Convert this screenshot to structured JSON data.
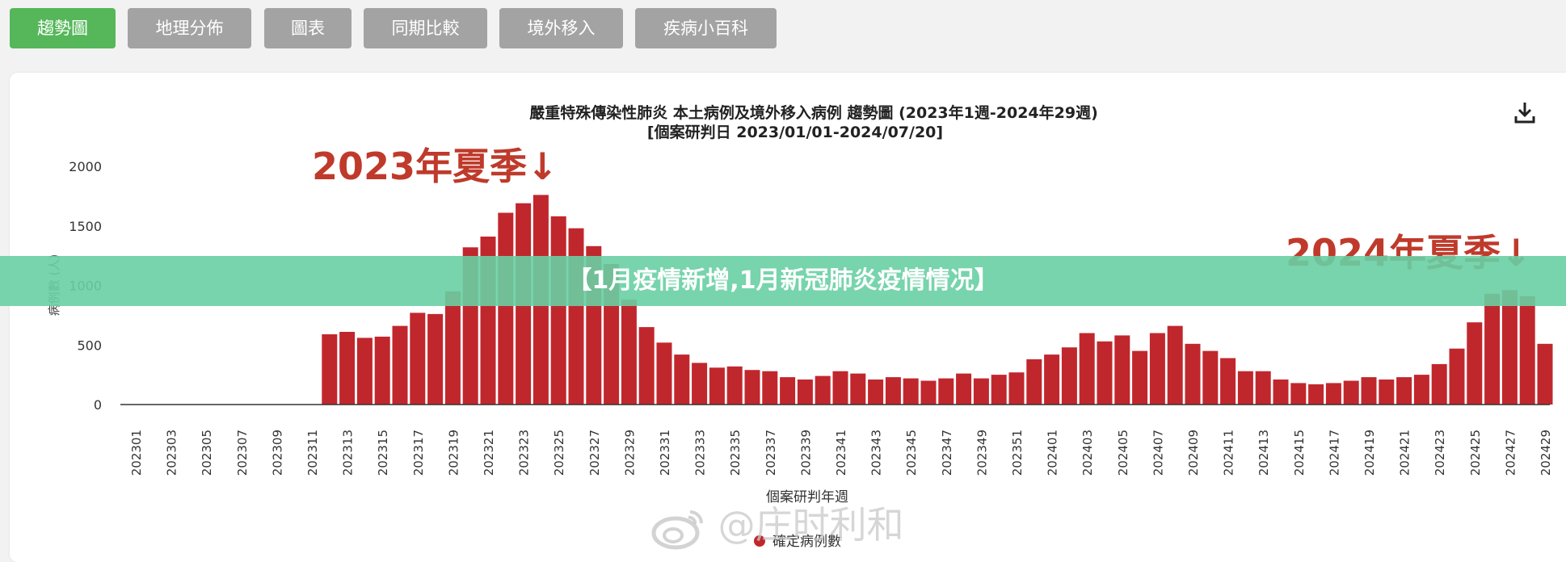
{
  "tabs": [
    {
      "label": "趨勢圖",
      "active": true
    },
    {
      "label": "地理分佈",
      "active": false
    },
    {
      "label": "圖表",
      "active": false
    },
    {
      "label": "同期比較",
      "active": false
    },
    {
      "label": "境外移入",
      "active": false
    },
    {
      "label": "疾病小百科",
      "active": false
    }
  ],
  "banner": {
    "text": "【1月疫情新增,1月新冠肺炎疫情情况】"
  },
  "watermark": {
    "text": "@庄时利和"
  },
  "download": {
    "icon": "download-icon"
  },
  "colors": {
    "bar": "#c0272d",
    "active_tab": "#55b75a",
    "tab": "#a3a3a3",
    "banner": "#68cfa3",
    "annotation": "#bf3a2b"
  },
  "chart_data": {
    "type": "bar",
    "title": "嚴重特殊傳染性肺炎 本土病例及境外移入病例 趨勢圖 (2023年1週-2024年29週)",
    "subtitle": "[個案研判日 2023/01/01-2024/07/20]",
    "xlabel": "個案研判年週",
    "ylabel": "病例數 (人)",
    "ylim": [
      0,
      2000
    ],
    "yticks": [
      0,
      500,
      1000,
      1500,
      2000
    ],
    "xtick_labels": [
      "202301",
      "202303",
      "202305",
      "202307",
      "202309",
      "202311",
      "202313",
      "202315",
      "202317",
      "202319",
      "202321",
      "202323",
      "202325",
      "202327",
      "202329",
      "202331",
      "202333",
      "202335",
      "202337",
      "202339",
      "202341",
      "202343",
      "202345",
      "202347",
      "202349",
      "202351",
      "202401",
      "202403",
      "202405",
      "202407",
      "202409",
      "202411",
      "202413",
      "202415",
      "202417",
      "202419",
      "202421",
      "202423",
      "202425",
      "202427",
      "202429"
    ],
    "categories": [
      "202301",
      "202302",
      "202303",
      "202304",
      "202305",
      "202306",
      "202307",
      "202308",
      "202309",
      "202310",
      "202311",
      "202312",
      "202313",
      "202314",
      "202315",
      "202316",
      "202317",
      "202318",
      "202319",
      "202320",
      "202321",
      "202322",
      "202323",
      "202324",
      "202325",
      "202326",
      "202327",
      "202328",
      "202329",
      "202330",
      "202331",
      "202332",
      "202333",
      "202334",
      "202335",
      "202336",
      "202337",
      "202338",
      "202339",
      "202340",
      "202341",
      "202342",
      "202343",
      "202344",
      "202345",
      "202346",
      "202347",
      "202348",
      "202349",
      "202350",
      "202351",
      "202352",
      "202401",
      "202402",
      "202403",
      "202404",
      "202405",
      "202406",
      "202407",
      "202408",
      "202409",
      "202410",
      "202411",
      "202412",
      "202413",
      "202414",
      "202415",
      "202416",
      "202417",
      "202418",
      "202419",
      "202420",
      "202421",
      "202422",
      "202423",
      "202424",
      "202425",
      "202426",
      "202427",
      "202428",
      "202429"
    ],
    "series": [
      {
        "name": "確定病例數",
        "values": [
          0,
          0,
          0,
          0,
          0,
          0,
          0,
          0,
          0,
          0,
          0,
          590,
          610,
          560,
          570,
          660,
          770,
          760,
          950,
          1320,
          1410,
          1610,
          1690,
          1760,
          1580,
          1480,
          1330,
          1180,
          880,
          650,
          520,
          420,
          350,
          310,
          320,
          290,
          280,
          230,
          210,
          240,
          280,
          260,
          210,
          230,
          220,
          200,
          220,
          260,
          220,
          250,
          270,
          380,
          420,
          480,
          600,
          530,
          580,
          450,
          600,
          660,
          510,
          450,
          390,
          280,
          280,
          210,
          180,
          170,
          180,
          200,
          230,
          210,
          230,
          250,
          340,
          470,
          690,
          930,
          960,
          910,
          510
        ]
      }
    ],
    "annotations": [
      {
        "text": "2023年夏季↓"
      },
      {
        "text": "2024年夏季↓"
      }
    ],
    "legend": "bottom-center"
  }
}
